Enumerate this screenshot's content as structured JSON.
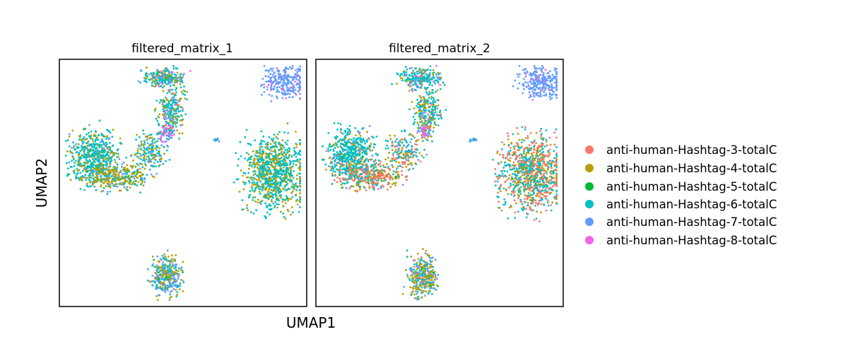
{
  "chart_data": {
    "type": "scatter",
    "xlabel": "UMAP1",
    "ylabel": "UMAP2",
    "grid": false,
    "legend_placement": "right",
    "panels": [
      {
        "title": "filtered_matrix_1",
        "clusters": [
          {
            "name": "arc_top",
            "seed": 11,
            "count": 230,
            "cx": 0.42,
            "cy": 0.06,
            "rx": 0.08,
            "ry": 0.035,
            "mix": [
              0,
              0.22,
              0.03,
              0.55,
              0.12,
              0.08
            ]
          },
          {
            "name": "arc_mid",
            "seed": 12,
            "count": 240,
            "cx": 0.45,
            "cy": 0.2,
            "rx": 0.05,
            "ry": 0.08,
            "mix": [
              0,
              0.3,
              0.02,
              0.48,
              0.14,
              0.06
            ]
          },
          {
            "name": "arc_pink",
            "seed": 13,
            "count": 60,
            "cx": 0.43,
            "cy": 0.29,
            "rx": 0.03,
            "ry": 0.03,
            "mix": [
              0,
              0.1,
              0,
              0.1,
              0.3,
              0.5
            ]
          },
          {
            "name": "arc_low",
            "seed": 14,
            "count": 170,
            "cx": 0.36,
            "cy": 0.37,
            "rx": 0.06,
            "ry": 0.07,
            "mix": [
              0,
              0.3,
              0.02,
              0.48,
              0.2,
              0
            ]
          },
          {
            "name": "left_big",
            "seed": 15,
            "count": 560,
            "cx": 0.13,
            "cy": 0.39,
            "rx": 0.09,
            "ry": 0.1,
            "mix": [
              0,
              0.18,
              0.02,
              0.72,
              0.08,
              0
            ]
          },
          {
            "name": "left_lower",
            "seed": 16,
            "count": 320,
            "cx": 0.22,
            "cy": 0.47,
            "rx": 0.12,
            "ry": 0.05,
            "mix": [
              0,
              0.55,
              0.02,
              0.28,
              0.15,
              0
            ]
          },
          {
            "name": "right_blob",
            "seed": 17,
            "count": 900,
            "cx": 0.88,
            "cy": 0.46,
            "rx": 0.11,
            "ry": 0.14,
            "mix": [
              0,
              0.35,
              0.01,
              0.64,
              0,
              0
            ]
          },
          {
            "name": "top_right",
            "seed": 18,
            "count": 260,
            "cx": 0.92,
            "cy": 0.08,
            "rx": 0.08,
            "ry": 0.06,
            "mix": [
              0,
              0,
              0,
              0,
              0.93,
              0.07
            ]
          },
          {
            "name": "tiny",
            "seed": 19,
            "count": 12,
            "cx": 0.64,
            "cy": 0.32,
            "rx": 0.015,
            "ry": 0.006,
            "mix": [
              0,
              0,
              0,
              0.5,
              0.5,
              0
            ]
          },
          {
            "name": "bottom",
            "seed": 20,
            "count": 340,
            "cx": 0.43,
            "cy": 0.89,
            "rx": 0.055,
            "ry": 0.075,
            "mix": [
              0,
              0.38,
              0.03,
              0.28,
              0.31,
              0
            ]
          }
        ]
      },
      {
        "title": "filtered_matrix_2",
        "clusters": [
          {
            "name": "arc_top",
            "seed": 21,
            "count": 230,
            "cx": 0.42,
            "cy": 0.06,
            "rx": 0.08,
            "ry": 0.035,
            "mix": [
              0,
              0.2,
              0.03,
              0.58,
              0.1,
              0.09
            ]
          },
          {
            "name": "arc_mid",
            "seed": 22,
            "count": 240,
            "cx": 0.45,
            "cy": 0.2,
            "rx": 0.05,
            "ry": 0.08,
            "mix": [
              0,
              0.28,
              0.02,
              0.55,
              0.1,
              0.05
            ]
          },
          {
            "name": "arc_pink",
            "seed": 23,
            "count": 60,
            "cx": 0.44,
            "cy": 0.29,
            "rx": 0.03,
            "ry": 0.03,
            "mix": [
              0,
              0.1,
              0,
              0.1,
              0.25,
              0.55
            ]
          },
          {
            "name": "arc_low",
            "seed": 24,
            "count": 170,
            "cx": 0.35,
            "cy": 0.37,
            "rx": 0.06,
            "ry": 0.07,
            "mix": [
              0.15,
              0.3,
              0.02,
              0.33,
              0.2,
              0
            ]
          },
          {
            "name": "left_big",
            "seed": 25,
            "count": 560,
            "cx": 0.13,
            "cy": 0.39,
            "rx": 0.09,
            "ry": 0.1,
            "mix": [
              0.03,
              0.12,
              0.02,
              0.75,
              0.08,
              0
            ]
          },
          {
            "name": "left_lower",
            "seed": 26,
            "count": 320,
            "cx": 0.22,
            "cy": 0.47,
            "rx": 0.12,
            "ry": 0.05,
            "mix": [
              0.45,
              0.3,
              0.02,
              0.15,
              0.08,
              0
            ]
          },
          {
            "name": "right_blob",
            "seed": 27,
            "count": 900,
            "cx": 0.88,
            "cy": 0.46,
            "rx": 0.11,
            "ry": 0.14,
            "mix": [
              0.32,
              0.22,
              0.01,
              0.45,
              0,
              0
            ]
          },
          {
            "name": "top_right",
            "seed": 28,
            "count": 260,
            "cx": 0.92,
            "cy": 0.08,
            "rx": 0.08,
            "ry": 0.06,
            "mix": [
              0,
              0,
              0,
              0,
              0.93,
              0.07
            ]
          },
          {
            "name": "tiny",
            "seed": 29,
            "count": 12,
            "cx": 0.64,
            "cy": 0.32,
            "rx": 0.015,
            "ry": 0.006,
            "mix": [
              0,
              0,
              0,
              0.5,
              0.5,
              0
            ]
          },
          {
            "name": "bottom",
            "seed": 30,
            "count": 340,
            "cx": 0.43,
            "cy": 0.89,
            "rx": 0.055,
            "ry": 0.075,
            "mix": [
              0.05,
              0.45,
              0.03,
              0.22,
              0.25,
              0
            ]
          }
        ]
      }
    ],
    "legend": [
      {
        "label": "anti-human-Hashtag-3-totalC",
        "color": "#F8766D"
      },
      {
        "label": "anti-human-Hashtag-4-totalC",
        "color": "#B79F00"
      },
      {
        "label": "anti-human-Hashtag-5-totalC",
        "color": "#00BA38"
      },
      {
        "label": "anti-human-Hashtag-6-totalC",
        "color": "#00BFC4"
      },
      {
        "label": "anti-human-Hashtag-7-totalC",
        "color": "#619CFF"
      },
      {
        "label": "anti-human-Hashtag-8-totalC",
        "color": "#F564E3"
      }
    ]
  }
}
